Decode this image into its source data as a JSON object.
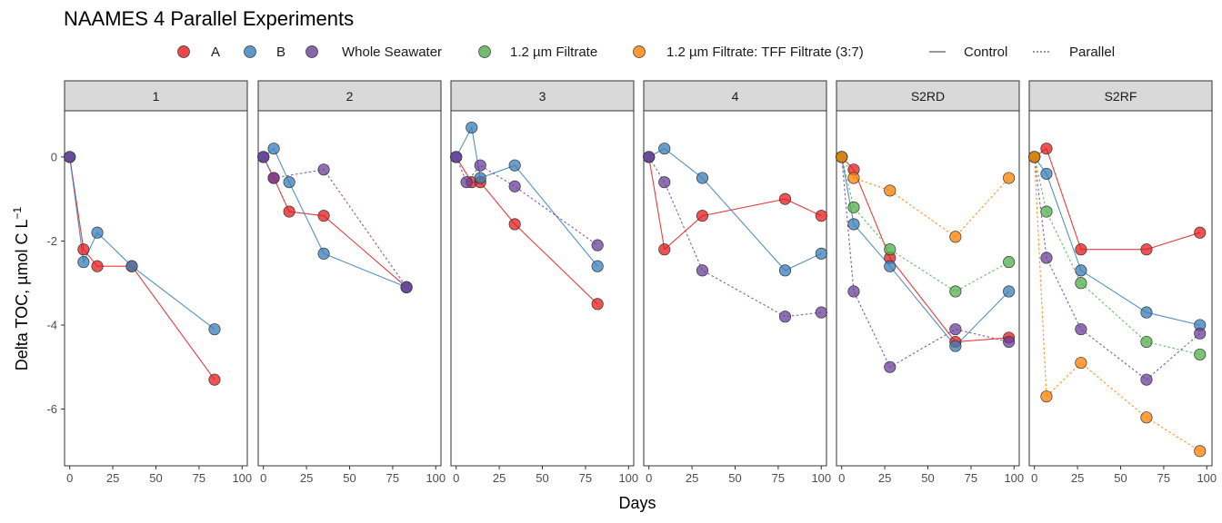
{
  "chart_data": {
    "type": "line",
    "title": "NAAMES 4 Parallel Experiments",
    "xlabel": "Days",
    "ylabel": "Delta TOC, µmol C L",
    "ylabel_superscript": "−1",
    "xlim": [
      -3,
      103
    ],
    "ylim": [
      -7.35,
      1.1
    ],
    "x_ticks": [
      0,
      25,
      50,
      75,
      100
    ],
    "y_ticks": [
      0,
      -2,
      -4,
      -6
    ],
    "x_tick_labels": [
      "0",
      "25",
      "50",
      "75",
      "100"
    ],
    "y_tick_labels": [
      "0",
      "-2",
      "-4",
      "-6"
    ],
    "legend": {
      "position": "top",
      "color_items": [
        {
          "label": "A",
          "color": "#e41a1c"
        },
        {
          "label": "B",
          "color": "#377eb8"
        },
        {
          "label": "Whole Seawater",
          "color": "#6a3d9a"
        },
        {
          "label": "1.2 µm Filtrate",
          "color": "#4daf4a"
        },
        {
          "label": "1.2 µm Filtrate: TFF Filtrate (3:7)",
          "color": "#ff7f00"
        }
      ],
      "line_items": [
        {
          "label": "Control",
          "dash": "solid"
        },
        {
          "label": "Parallel",
          "dash": "dotted"
        }
      ]
    },
    "panels": [
      {
        "label": "1",
        "series": [
          {
            "group": "A",
            "color": "#e41a1c",
            "linetype": "solid",
            "x": [
              0,
              8,
              16,
              36,
              84
            ],
            "y": [
              0,
              -2.2,
              -2.6,
              -2.6,
              -5.3
            ]
          },
          {
            "group": "B",
            "color": "#377eb8",
            "linetype": "solid",
            "x": [
              0,
              8,
              16,
              36,
              84
            ],
            "y": [
              0,
              -2.5,
              -1.8,
              -2.6,
              -4.1
            ]
          },
          {
            "group": "Whole Seawater",
            "color": "#6a3d9a",
            "linetype": "dotted",
            "x": [
              0
            ],
            "y": [
              0
            ]
          }
        ]
      },
      {
        "label": "2",
        "series": [
          {
            "group": "A",
            "color": "#e41a1c",
            "linetype": "solid",
            "x": [
              0,
              6,
              15,
              35,
              83
            ],
            "y": [
              0,
              -0.5,
              -1.3,
              -1.4,
              -3.1
            ]
          },
          {
            "group": "B",
            "color": "#377eb8",
            "linetype": "solid",
            "x": [
              0,
              6,
              15,
              35,
              83
            ],
            "y": [
              0,
              0.2,
              -0.6,
              -2.3,
              -3.1
            ]
          },
          {
            "group": "Whole Seawater",
            "color": "#6a3d9a",
            "linetype": "dotted",
            "x": [
              0,
              6,
              35,
              83
            ],
            "y": [
              0,
              -0.5,
              -0.3,
              -3.1
            ]
          }
        ]
      },
      {
        "label": "3",
        "series": [
          {
            "group": "A",
            "color": "#e41a1c",
            "linetype": "solid",
            "x": [
              0,
              9,
              14,
              34,
              82
            ],
            "y": [
              0,
              -0.6,
              -0.6,
              -1.6,
              -3.5
            ]
          },
          {
            "group": "B",
            "color": "#377eb8",
            "linetype": "solid",
            "x": [
              0,
              9,
              14,
              34,
              82
            ],
            "y": [
              0,
              0.7,
              -0.5,
              -0.2,
              -2.6
            ]
          },
          {
            "group": "Whole Seawater",
            "color": "#6a3d9a",
            "linetype": "dotted",
            "x": [
              0,
              6,
              14,
              34,
              82
            ],
            "y": [
              0,
              -0.6,
              -0.2,
              -0.7,
              -2.1
            ]
          }
        ]
      },
      {
        "label": "4",
        "series": [
          {
            "group": "A",
            "color": "#e41a1c",
            "linetype": "solid",
            "x": [
              0,
              9,
              31,
              79,
              100
            ],
            "y": [
              0,
              -2.2,
              -1.4,
              -1.0,
              -1.4
            ]
          },
          {
            "group": "B",
            "color": "#377eb8",
            "linetype": "solid",
            "x": [
              0,
              9,
              31,
              79,
              100
            ],
            "y": [
              0,
              0.2,
              -0.5,
              -2.7,
              -2.3
            ]
          },
          {
            "group": "Whole Seawater",
            "color": "#6a3d9a",
            "linetype": "dotted",
            "x": [
              0,
              9,
              31,
              79,
              100
            ],
            "y": [
              0,
              -0.6,
              -2.7,
              -3.8,
              -3.7
            ]
          }
        ]
      },
      {
        "label": "S2RD",
        "series": [
          {
            "group": "A",
            "color": "#e41a1c",
            "linetype": "solid",
            "x": [
              0,
              7,
              28,
              66,
              97
            ],
            "y": [
              0,
              -0.3,
              -2.4,
              -4.4,
              -4.3
            ]
          },
          {
            "group": "B",
            "color": "#377eb8",
            "linetype": "solid",
            "x": [
              0,
              7,
              28,
              66,
              97
            ],
            "y": [
              0,
              -1.6,
              -2.6,
              -4.5,
              -3.2
            ]
          },
          {
            "group": "Whole Seawater",
            "color": "#6a3d9a",
            "linetype": "dotted",
            "x": [
              0,
              7,
              28,
              66,
              97
            ],
            "y": [
              0,
              -3.2,
              -5.0,
              -4.1,
              -4.4
            ]
          },
          {
            "group": "1.2 µm Filtrate",
            "color": "#4daf4a",
            "linetype": "dotted",
            "x": [
              0,
              7,
              28,
              66,
              97
            ],
            "y": [
              0,
              -1.2,
              -2.2,
              -3.2,
              -2.5
            ]
          },
          {
            "group": "1.2 µm Filtrate: TFF Filtrate (3:7)",
            "color": "#ff7f00",
            "linetype": "dotted",
            "x": [
              0,
              7,
              28,
              66,
              97
            ],
            "y": [
              0,
              -0.5,
              -0.8,
              -1.9,
              -0.5
            ]
          }
        ]
      },
      {
        "label": "S2RF",
        "series": [
          {
            "group": "A",
            "color": "#e41a1c",
            "linetype": "solid",
            "x": [
              0,
              7,
              27,
              65,
              96
            ],
            "y": [
              0,
              0.2,
              -2.2,
              -2.2,
              -1.8
            ]
          },
          {
            "group": "B",
            "color": "#377eb8",
            "linetype": "solid",
            "x": [
              0,
              7,
              27,
              65,
              96
            ],
            "y": [
              0,
              -0.4,
              -2.7,
              -3.7,
              -4.0
            ]
          },
          {
            "group": "Whole Seawater",
            "color": "#6a3d9a",
            "linetype": "dotted",
            "x": [
              0,
              7,
              27,
              65,
              96
            ],
            "y": [
              0,
              -2.4,
              -4.1,
              -5.3,
              -4.2
            ]
          },
          {
            "group": "1.2 µm Filtrate",
            "color": "#4daf4a",
            "linetype": "dotted",
            "x": [
              0,
              7,
              27,
              65,
              96
            ],
            "y": [
              0,
              -1.3,
              -3.0,
              -4.4,
              -4.7
            ]
          },
          {
            "group": "1.2 µm Filtrate: TFF Filtrate (3:7)",
            "color": "#ff7f00",
            "linetype": "dotted",
            "x": [
              0,
              7,
              27,
              65,
              96
            ],
            "y": [
              0,
              -5.7,
              -4.9,
              -6.2,
              -7.0
            ]
          }
        ]
      }
    ]
  }
}
